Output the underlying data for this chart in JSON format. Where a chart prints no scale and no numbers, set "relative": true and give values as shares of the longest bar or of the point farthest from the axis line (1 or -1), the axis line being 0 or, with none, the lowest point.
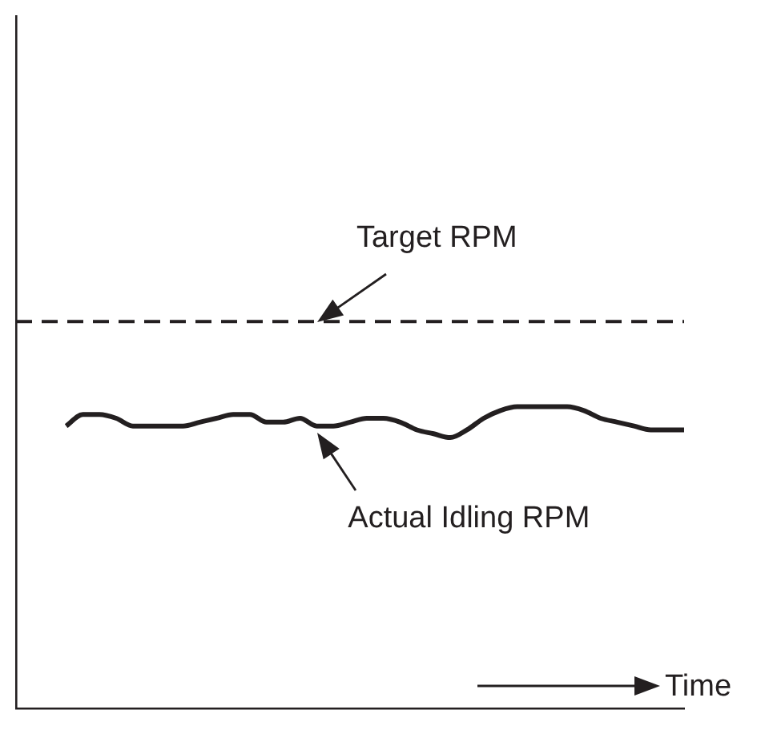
{
  "chart_data": {
    "type": "line",
    "relative": true,
    "xlabel": "Time",
    "tick_labels": false,
    "categories": [
      null,
      null,
      null,
      null,
      null,
      null,
      null,
      null,
      null,
      null,
      null,
      null,
      null,
      null,
      null,
      null,
      null,
      null,
      null,
      null,
      null,
      null,
      null,
      null,
      null,
      null,
      null,
      null,
      null,
      null,
      null,
      null,
      null,
      null,
      null,
      null,
      null,
      null,
      null,
      null,
      null
    ],
    "series": [
      {
        "name": "Target RPM",
        "color": "#231f20",
        "line_style": "dashed",
        "values": [
          1,
          1,
          1,
          1,
          1,
          1,
          1,
          1,
          1,
          1,
          1,
          1,
          1,
          1,
          1,
          1,
          1,
          1,
          1,
          1,
          1,
          1,
          1,
          1,
          1,
          1,
          1,
          1,
          1,
          1,
          1,
          1,
          1,
          1,
          1,
          1,
          1,
          1,
          1,
          1,
          1
        ]
      },
      {
        "name": "Actual Idling RPM",
        "color": "#231f20",
        "line_style": "solid",
        "values": [
          null,
          null,
          null,
          0.73,
          0.76,
          0.76,
          0.75,
          0.73,
          0.73,
          0.73,
          0.73,
          0.74,
          0.75,
          0.76,
          0.76,
          0.74,
          0.74,
          0.75,
          0.73,
          0.73,
          0.74,
          0.75,
          0.75,
          0.74,
          0.72,
          0.71,
          0.7,
          0.72,
          0.75,
          0.77,
          0.78,
          0.78,
          0.78,
          0.78,
          0.77,
          0.75,
          0.74,
          0.73,
          0.72,
          0.72,
          0.72
        ]
      }
    ]
  }
}
